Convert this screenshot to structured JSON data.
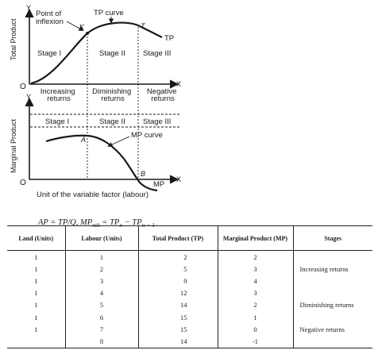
{
  "top_graph": {
    "y_axis_letter": "Y",
    "y_axis_label": "Total Product",
    "origin_label": "O",
    "x_axis_letter": "X",
    "point_of_inflexion": [
      "Point of",
      "inflexion"
    ],
    "point_k": "K",
    "point_t": "T",
    "tp_curve_label": "TP curve",
    "tp_label": "TP",
    "stages": [
      "Stage I",
      "Stage II",
      "Stage III"
    ]
  },
  "returns_band": [
    "Increasing returns",
    "Diminishing returns",
    "Negative returns"
  ],
  "bottom_graph": {
    "y_axis_letter": "Y",
    "y_axis_label": "Marginal Product",
    "origin_label": "O",
    "x_axis_letter": "X",
    "stages": [
      "Stage I",
      "Stage II",
      "Stage III"
    ],
    "point_a": "A",
    "point_b": "B",
    "mp_curve_label": "MP curve",
    "mp_label": "MP",
    "x_caption": "Unit of the variable factor (labour)"
  },
  "formula": {
    "part1": "AP = TP/Q, MP",
    "sub1": "nth",
    "part2": " = TP",
    "sub2": "n",
    "part3": " − TP",
    "sub3": "n − 1"
  },
  "table": {
    "headers": [
      "Land (Units)",
      "Labour (Units)",
      "Total Product (TP)",
      "Marginal Product (MP)",
      "Stages"
    ],
    "rows": [
      [
        "1",
        "1",
        "2",
        "2"
      ],
      [
        "1",
        "2",
        "5",
        "3"
      ],
      [
        "1",
        "3",
        "9",
        "4"
      ],
      [
        "1",
        "4",
        "12",
        "3"
      ],
      [
        "1",
        "5",
        "14",
        "2"
      ],
      [
        "1",
        "6",
        "15",
        "1"
      ],
      [
        "1",
        "7",
        "15",
        "0"
      ],
      [
        "",
        "8",
        "14",
        "-1"
      ]
    ],
    "stage_labels": [
      "Increasing returns",
      "Diminishing returns",
      "Negative returns"
    ]
  }
}
